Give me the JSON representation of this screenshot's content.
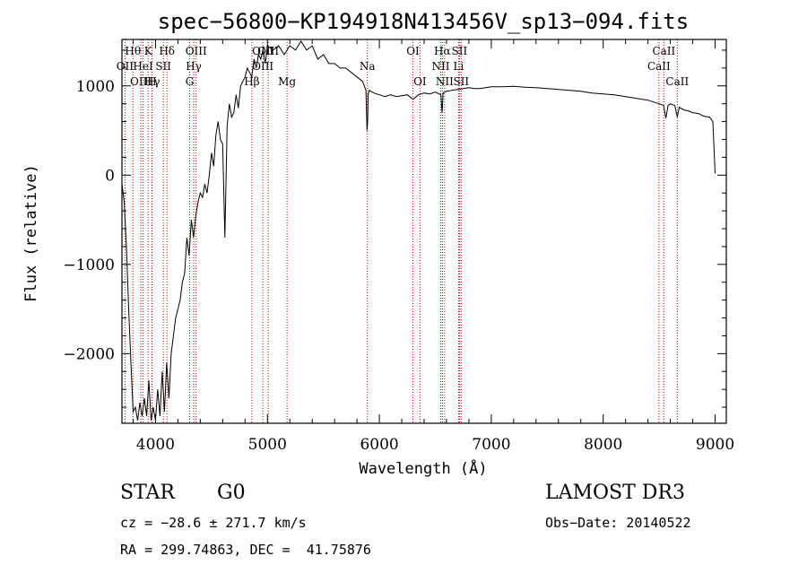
{
  "chart_data": {
    "type": "line",
    "title": "spec−56800−KP194918N413456V_sp13−094.fits",
    "xlabel": "Wavelength (Å)",
    "ylabel": "Flux (relative)",
    "xlim": [
      3700,
      9100
    ],
    "ylim": [
      -2780,
      1520
    ],
    "xticks": [
      4000,
      5000,
      6000,
      7000,
      8000,
      9000
    ],
    "xtick_labels": [
      "4000",
      "5000",
      "6000",
      "7000",
      "8000",
      "9000"
    ],
    "yticks": [
      -2000,
      -1000,
      0,
      1000
    ],
    "ytick_labels": [
      "−2000",
      "−1000",
      "0",
      "1000"
    ],
    "grid": false,
    "series": [
      {
        "x": [
          3700,
          3720,
          3740,
          3760,
          3780,
          3800,
          3820,
          3840,
          3860,
          3880,
          3900,
          3920,
          3940,
          3960,
          3980,
          4000,
          4020,
          4040,
          4060,
          4080,
          4100,
          4120,
          4140,
          4160,
          4180,
          4200,
          4220,
          4240,
          4260,
          4280,
          4300,
          4320,
          4340,
          4360,
          4380,
          4400,
          4420,
          4440,
          4460,
          4480,
          4500,
          4520,
          4540,
          4560,
          4580,
          4600,
          4620,
          4640,
          4660,
          4680,
          4700,
          4720,
          4740,
          4760,
          4780,
          4800,
          4820,
          4840,
          4860,
          4880,
          4900,
          4920,
          4940,
          4960,
          4980,
          5000,
          5050,
          5100,
          5150,
          5200,
          5250,
          5300,
          5350,
          5400,
          5450,
          5500,
          5550,
          5600,
          5650,
          5700,
          5750,
          5800,
          5850,
          5880,
          5890,
          5895,
          5900,
          5910,
          5950,
          6000,
          6050,
          6100,
          6150,
          6200,
          6250,
          6300,
          6350,
          6400,
          6450,
          6500,
          6550,
          6560,
          6565,
          6570,
          6600,
          6650,
          6700,
          6750,
          6800,
          6850,
          6900,
          6950,
          7000,
          7100,
          7200,
          7300,
          7400,
          7500,
          7600,
          7700,
          7800,
          7900,
          8000,
          8100,
          8200,
          8300,
          8400,
          8450,
          8500,
          8540,
          8560,
          8580,
          8600,
          8640,
          8662,
          8680,
          8720,
          8760,
          8800,
          8850,
          8900,
          8950,
          8980,
          9000
        ],
        "y": [
          -100,
          -300,
          -800,
          -1500,
          -2100,
          -2650,
          -2600,
          -2750,
          -2550,
          -2700,
          -2500,
          -2700,
          -2300,
          -2750,
          -2600,
          -2750,
          -2400,
          -2700,
          -2200,
          -2650,
          -2100,
          -2500,
          -2000,
          -1800,
          -1600,
          -1500,
          -1400,
          -1200,
          -1100,
          -700,
          -900,
          -500,
          -700,
          -450,
          -300,
          -200,
          -250,
          -100,
          -200,
          0,
          250,
          100,
          450,
          600,
          400,
          350,
          -700,
          550,
          800,
          650,
          700,
          900,
          750,
          1000,
          1050,
          1100,
          1200,
          1150,
          1100,
          1300,
          1200,
          1350,
          1300,
          1400,
          1250,
          1450,
          1400,
          1450,
          1350,
          1450,
          1400,
          1500,
          1400,
          1450,
          1300,
          1350,
          1250,
          1250,
          1200,
          1200,
          1150,
          1100,
          1050,
          950,
          500,
          600,
          900,
          950,
          920,
          900,
          880,
          900,
          880,
          890,
          900,
          850,
          900,
          920,
          910,
          930,
          900,
          700,
          800,
          920,
          940,
          950,
          960,
          970,
          980,
          970,
          970,
          980,
          990,
          990,
          995,
          985,
          980,
          970,
          960,
          950,
          940,
          920,
          910,
          900,
          880,
          860,
          840,
          820,
          800,
          780,
          640,
          780,
          800,
          780,
          650,
          760,
          730,
          720,
          700,
          690,
          660,
          650,
          600,
          20
        ]
      }
    ],
    "line_labels": [
      {
        "text": "Hθ",
        "x": 3798,
        "row": 1
      },
      {
        "text": "K",
        "x": 3934,
        "row": 1
      },
      {
        "text": "Hδ",
        "x": 4102,
        "row": 1
      },
      {
        "text": "OII",
        "x": 3727,
        "row": 2
      },
      {
        "text": "HeI",
        "x": 3889,
        "row": 2
      },
      {
        "text": "SII",
        "x": 4070,
        "row": 2
      },
      {
        "text": "OIII",
        "x": 3869,
        "row": 3
      },
      {
        "text": "Hγ",
        "x": 3970,
        "row": 3
      },
      {
        "text": "H",
        "x": 3968,
        "row": 3
      },
      {
        "text": "OIII",
        "x": 4363,
        "row": 1
      },
      {
        "text": "Hγ",
        "x": 4341,
        "row": 2
      },
      {
        "text": "G",
        "x": 4305,
        "row": 3
      },
      {
        "text": "OIII",
        "x": 4959,
        "row": 1
      },
      {
        "text": "OIII",
        "x": 5007,
        "row": 1
      },
      {
        "text": "OIII",
        "x": 4959,
        "row": 2
      },
      {
        "text": "Hβ",
        "x": 4861,
        "row": 3
      },
      {
        "text": "Mg",
        "x": 5175,
        "row": 3
      },
      {
        "text": "Na",
        "x": 5893,
        "row": 2
      },
      {
        "text": "OI",
        "x": 6300,
        "row": 1
      },
      {
        "text": "OI",
        "x": 6363,
        "row": 3
      },
      {
        "text": "Hα",
        "x": 6563,
        "row": 1
      },
      {
        "text": "SII",
        "x": 6716,
        "row": 1
      },
      {
        "text": "NII",
        "x": 6548,
        "row": 2
      },
      {
        "text": "Li",
        "x": 6708,
        "row": 2
      },
      {
        "text": "NII",
        "x": 6583,
        "row": 3
      },
      {
        "text": "SII",
        "x": 6731,
        "row": 3
      },
      {
        "text": "CaII",
        "x": 8542,
        "row": 1
      },
      {
        "text": "CaII",
        "x": 8498,
        "row": 2
      },
      {
        "text": "CaII",
        "x": 8662,
        "row": 3
      }
    ],
    "line_positions": [
      3727,
      3798,
      3869,
      3889,
      3934,
      3968,
      3970,
      4070,
      4102,
      4305,
      4341,
      4363,
      4861,
      4959,
      5007,
      5175,
      5893,
      6300,
      6363,
      6548,
      6563,
      6583,
      6708,
      6716,
      6731,
      8498,
      8542,
      8662
    ]
  },
  "info": {
    "class_label": "STAR",
    "subclass": "G0",
    "survey": "LAMOST DR3",
    "cz": "cz = −28.6 ± 271.7 km/s",
    "obs_date": "Obs−Date: 20140522",
    "coords": "RA = 299.74863, DEC =  41.75876"
  }
}
